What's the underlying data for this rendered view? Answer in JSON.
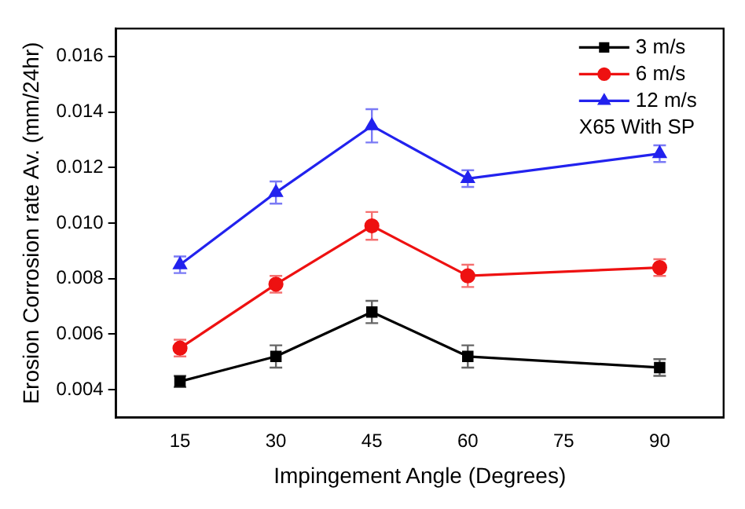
{
  "chart_data": {
    "type": "line",
    "xlabel": "Impingement Angle (Degrees)",
    "ylabel": "Erosion Corrosion rate Av. (mm/24hr)",
    "x": [
      15,
      30,
      45,
      60,
      90
    ],
    "series": [
      {
        "name": "3 m/s",
        "color": "#000000",
        "marker": "square",
        "values": [
          0.0043,
          0.0052,
          0.0068,
          0.0052,
          0.0048
        ],
        "errors": [
          0.0002,
          0.0004,
          0.0004,
          0.0004,
          0.0003
        ]
      },
      {
        "name": "6 m/s",
        "color": "#ee1111",
        "marker": "circle",
        "values": [
          0.0055,
          0.0078,
          0.0099,
          0.0081,
          0.0084
        ],
        "errors": [
          0.0003,
          0.0003,
          0.0005,
          0.0004,
          0.0003
        ]
      },
      {
        "name": "12 m/s",
        "color": "#2222ee",
        "marker": "triangle",
        "values": [
          0.0085,
          0.0111,
          0.0135,
          0.0116,
          0.0125
        ],
        "errors": [
          0.0003,
          0.0004,
          0.0006,
          0.0003,
          0.0003
        ]
      }
    ],
    "xlim": [
      5,
      100
    ],
    "xticks": [
      15,
      30,
      45,
      60,
      75,
      90
    ],
    "ylim": [
      0.003,
      0.017
    ],
    "yticks": [
      0.004,
      0.006,
      0.008,
      {
        "value": 0.01,
        "label": "0.010"
      },
      0.012,
      0.014,
      0.016
    ],
    "annotations": [
      "X65 With SP"
    ],
    "legend": "top right",
    "grid": false
  }
}
